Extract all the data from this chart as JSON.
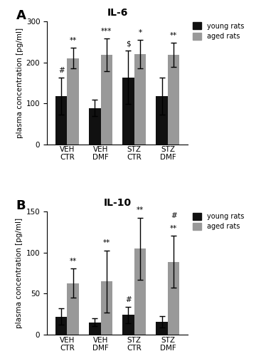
{
  "panel_A": {
    "title": "IL-6",
    "ylabel": "plasma concentration [pg/ml]",
    "ylim": [
      0,
      300
    ],
    "yticks": [
      0,
      100,
      200,
      300
    ],
    "groups": [
      "VEH\nCTR",
      "VEH\nDMF",
      "STZ\nCTR",
      "STZ\nDMF"
    ],
    "young_vals": [
      118,
      88,
      163,
      118
    ],
    "young_err": [
      45,
      20,
      65,
      45
    ],
    "aged_vals": [
      210,
      218,
      220,
      218
    ],
    "aged_err": [
      25,
      40,
      35,
      30
    ],
    "young_sigs": [
      "#",
      "",
      "$",
      ""
    ],
    "aged_sigs": [
      "**",
      "***",
      "*",
      "**"
    ]
  },
  "panel_B": {
    "title": "IL-10",
    "ylabel": "plasma concentration [pg/ml]",
    "ylim": [
      0,
      150
    ],
    "yticks": [
      0,
      50,
      100,
      150
    ],
    "groups": [
      "VEH\nCTR",
      "VEH\nDMF",
      "STZ\nCTR",
      "STZ\nDMF"
    ],
    "young_vals": [
      22,
      15,
      24,
      16
    ],
    "young_err": [
      10,
      5,
      10,
      7
    ],
    "aged_vals": [
      63,
      65,
      105,
      89
    ],
    "aged_err": [
      18,
      38,
      38,
      32
    ],
    "young_sigs": [
      "",
      "",
      "#",
      ""
    ],
    "aged_sigs": [
      "**",
      "**",
      "**",
      "**"
    ],
    "aged_extra_sigs": [
      "",
      "",
      "",
      "#"
    ]
  },
  "young_color": "#111111",
  "aged_color": "#999999",
  "bar_width": 0.35,
  "legend_labels": [
    "young rats",
    "aged rats"
  ],
  "panel_labels": [
    "A",
    "B"
  ]
}
